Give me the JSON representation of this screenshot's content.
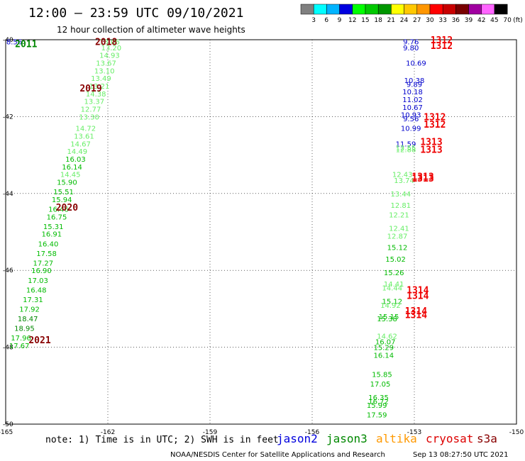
{
  "title": "12:00 – 23:59 UTC 09/10/2021",
  "subtitle": "12 hour collection of altimeter wave heights",
  "colorbar": {
    "unit_label": "(ft)",
    "labels": [
      "3",
      "6",
      "9",
      "12",
      "15",
      "18",
      "21",
      "24",
      "27",
      "30",
      "33",
      "36",
      "39",
      "42",
      "45",
      "70"
    ],
    "colors": [
      "#808080",
      "#00ffff",
      "#00b4ff",
      "#0000e0",
      "#00ff00",
      "#00c800",
      "#009600",
      "#ffff00",
      "#ffc800",
      "#ff9600",
      "#ff0000",
      "#c80000",
      "#780000",
      "#a000a0",
      "#ff64ff",
      "#000000"
    ]
  },
  "note": "note: 1) Time is in UTC; 2) SWH is in feet",
  "satellites": [
    {
      "name": "jason2",
      "color": "#0000dd"
    },
    {
      "name": "jason3",
      "color": "#008800"
    },
    {
      "name": "altika",
      "color": "#ff9900"
    },
    {
      "name": "cryosat",
      "color": "#dd0000"
    },
    {
      "name": "s3a",
      "color": "#880000"
    }
  ],
  "footer_left": "NOAA/NESDIS Center for Satellite Applications and Research",
  "footer_right": "Sep 13 08:27:50 UTC 2021",
  "chart_data": {
    "type": "scatter",
    "title": "12:00 – 23:59 UTC 09/10/2021",
    "subtitle": "12 hour collection of altimeter wave heights",
    "xlim": [
      -165,
      -150
    ],
    "ylim": [
      -50,
      -40
    ],
    "x_ticks": [
      -165,
      -162,
      -159,
      -156,
      -153,
      -150
    ],
    "y_ticks": [
      -40,
      -42,
      -44,
      -46,
      -48,
      -50
    ],
    "grid": true,
    "tracks": [
      {
        "name": "track_west_s3a",
        "points": [
          [
            -164.75,
            -40.05,
            "8.56"
          ],
          [
            -161.95,
            -40.05,
            "13.06"
          ],
          [
            -161.9,
            -40.2,
            "13.20"
          ],
          [
            -161.95,
            -40.4,
            "14.93"
          ],
          [
            -162.05,
            -40.6,
            "13.67"
          ],
          [
            -162.1,
            -40.8,
            "13.10"
          ],
          [
            -162.2,
            -41.0,
            "13.49"
          ],
          [
            -162.25,
            -41.2,
            "13.21"
          ],
          [
            -162.35,
            -41.4,
            "14.38"
          ],
          [
            -162.4,
            -41.6,
            "13.37"
          ],
          [
            -162.5,
            -41.8,
            "12.77"
          ],
          [
            -162.55,
            -42.0,
            "13.30"
          ],
          [
            -162.65,
            -42.3,
            "14.72"
          ],
          [
            -162.7,
            -42.5,
            "13.61"
          ],
          [
            -162.8,
            -42.7,
            "14.67"
          ],
          [
            -162.9,
            -42.9,
            "14.49"
          ],
          [
            -162.95,
            -43.1,
            "16.03"
          ],
          [
            -163.05,
            -43.3,
            "16.14"
          ],
          [
            -163.1,
            -43.5,
            "14.45"
          ],
          [
            -163.2,
            -43.7,
            "15.90"
          ],
          [
            -163.3,
            -43.95,
            "15.51"
          ],
          [
            -163.35,
            -44.15,
            "15.94"
          ],
          [
            -163.45,
            -44.4,
            "16.46"
          ],
          [
            -163.5,
            -44.6,
            "16.75"
          ],
          [
            -163.6,
            -44.85,
            "15.31"
          ],
          [
            -163.65,
            -45.05,
            "16.91"
          ],
          [
            -163.75,
            -45.3,
            "16.40"
          ],
          [
            -163.8,
            -45.55,
            "17.58"
          ],
          [
            -163.9,
            -45.8,
            "17.27"
          ],
          [
            -163.95,
            -46.0,
            "16.90"
          ],
          [
            -164.05,
            -46.25,
            "17.03"
          ],
          [
            -164.1,
            -46.5,
            "16.48"
          ],
          [
            -164.2,
            -46.75,
            "17.31"
          ],
          [
            -164.3,
            -47.0,
            "17.92"
          ],
          [
            -164.35,
            -47.25,
            "18.47"
          ],
          [
            -164.45,
            -47.5,
            "18.95"
          ],
          [
            -164.55,
            -47.75,
            "17.96"
          ],
          [
            -164.6,
            -47.95,
            "17.67"
          ]
        ],
        "hour_labels": [
          [
            -162.05,
            -40.05,
            "2018"
          ],
          [
            -162.5,
            -41.25,
            "2019"
          ],
          [
            -163.2,
            -44.35,
            "2020"
          ],
          [
            -164.0,
            -47.8,
            "2021"
          ],
          [
            -164.4,
            -40.1,
            "2011"
          ]
        ]
      },
      {
        "name": "track_east",
        "points": [
          [
            -153.1,
            -40.05,
            "9.76"
          ],
          [
            -153.1,
            -40.2,
            "9.80"
          ],
          [
            -152.95,
            -40.6,
            "10.69"
          ],
          [
            -153.0,
            -41.05,
            "10.38"
          ],
          [
            -153.0,
            -41.15,
            "9.89"
          ],
          [
            -153.05,
            -41.35,
            "10.18"
          ],
          [
            -153.05,
            -41.55,
            "11.02"
          ],
          [
            -153.05,
            -41.75,
            "10.67"
          ],
          [
            -153.1,
            -41.95,
            "10.93"
          ],
          [
            -153.1,
            -42.05,
            "9.56"
          ],
          [
            -153.1,
            -42.3,
            "10.99"
          ],
          [
            -153.25,
            -42.7,
            "11.59"
          ],
          [
            -153.25,
            -42.8,
            "12.55"
          ],
          [
            -153.25,
            -42.85,
            "12.88"
          ],
          [
            -153.35,
            -43.5,
            "12.43"
          ],
          [
            -153.3,
            -43.65,
            "13.74"
          ],
          [
            -153.4,
            -44.0,
            "13.44"
          ],
          [
            -153.4,
            -44.3,
            "12.81"
          ],
          [
            -153.45,
            -44.55,
            "12.21"
          ],
          [
            -153.45,
            -44.9,
            "12.41"
          ],
          [
            -153.5,
            -45.1,
            "12.87"
          ],
          [
            -153.5,
            -45.4,
            "15.12"
          ],
          [
            -153.55,
            -45.7,
            "15.02"
          ],
          [
            -153.6,
            -46.05,
            "15.26"
          ],
          [
            -153.6,
            -46.35,
            "14.41"
          ],
          [
            -153.65,
            -46.45,
            "14.44"
          ],
          [
            -153.65,
            -46.8,
            "15.12"
          ],
          [
            -153.7,
            -46.9,
            "14.92"
          ],
          [
            -153.75,
            -47.2,
            "15.15"
          ],
          [
            -153.8,
            -47.25,
            "15.38"
          ],
          [
            -153.8,
            -47.7,
            "14.62"
          ],
          [
            -153.85,
            -47.85,
            "16.07"
          ],
          [
            -153.9,
            -48.0,
            "15.29"
          ],
          [
            -153.9,
            -48.2,
            "16.14"
          ],
          [
            -153.95,
            -48.7,
            "15.85"
          ],
          [
            -154.0,
            -48.95,
            "17.05"
          ],
          [
            -154.05,
            -49.3,
            "16.35"
          ],
          [
            -154.05,
            -49.4,
            "16.72"
          ],
          [
            -154.1,
            -49.5,
            "15.99"
          ],
          [
            -154.1,
            -49.75,
            "17.59"
          ]
        ],
        "hour_labels": [
          [
            -152.2,
            -40.0,
            "1312"
          ],
          [
            -152.2,
            -40.15,
            "1312"
          ],
          [
            -152.4,
            -42.0,
            "1312"
          ],
          [
            -152.4,
            -42.2,
            "1312"
          ],
          [
            -152.5,
            -42.65,
            "1313"
          ],
          [
            -152.5,
            -42.85,
            "1313"
          ],
          [
            -152.75,
            -43.55,
            "1313"
          ],
          [
            -152.75,
            -43.6,
            "1313"
          ],
          [
            -152.9,
            -46.5,
            "1314"
          ],
          [
            -152.9,
            -46.65,
            "1314"
          ],
          [
            -152.95,
            -47.05,
            "1314"
          ],
          [
            -152.95,
            -47.15,
            "1314"
          ]
        ]
      }
    ]
  }
}
